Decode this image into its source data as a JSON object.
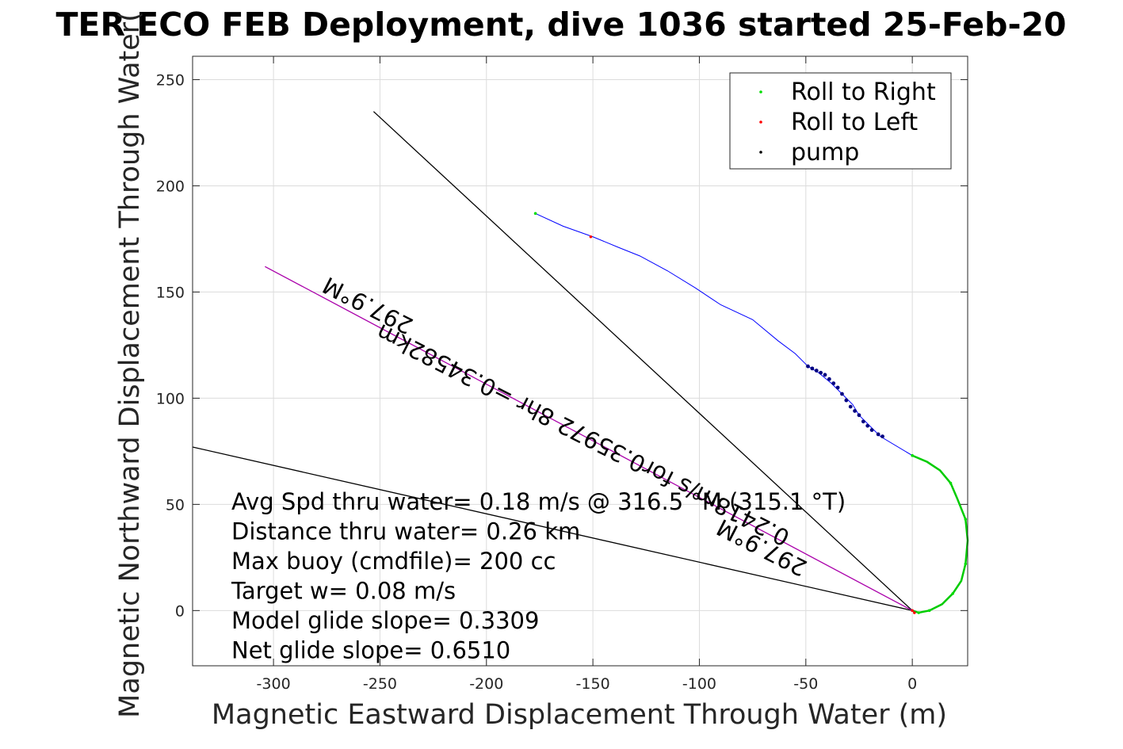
{
  "chart_data": {
    "type": "line",
    "title": "TER ECO FEB Deployment, dive 1036 started 25-Feb-20",
    "xlabel": "Magnetic Eastward Displacement Through Water (m)",
    "ylabel": "Magnetic Northward Displacement Through Water(",
    "xlim": [
      -338,
      26
    ],
    "ylim": [
      -26,
      261
    ],
    "xticks": [
      -300,
      -250,
      -200,
      -150,
      -100,
      -50,
      0
    ],
    "yticks": [
      0,
      50,
      100,
      150,
      200,
      250
    ],
    "grid": true,
    "legend_position": "top-right",
    "colors": {
      "track": "#0000ff",
      "roll_right": "#00cc00",
      "roll_left": "#ff0000",
      "pump": "#000080",
      "heading": "#aa00aa",
      "lines": "#000000"
    },
    "legend": [
      {
        "label": "Roll to Right",
        "color": "#00dd00"
      },
      {
        "label": "Roll to Left",
        "color": "#ff0000"
      },
      {
        "label": "pump",
        "color": "#000000"
      }
    ],
    "track": {
      "x": [
        0,
        7,
        13,
        18,
        21,
        25,
        26,
        25,
        23,
        19,
        14,
        8,
        3,
        0,
        -15,
        -20,
        -25,
        -28,
        -33,
        -38,
        -44,
        -49,
        -55,
        -63,
        -75,
        -90,
        -102,
        -115,
        -128,
        -138,
        -150,
        -164,
        -177
      ],
      "y": [
        73,
        70,
        66,
        60,
        53,
        43,
        33,
        22,
        14,
        8,
        3,
        0,
        -1,
        0,
        82,
        87,
        92,
        97,
        102,
        107,
        112,
        115,
        121,
        127,
        137,
        144,
        152,
        160,
        167,
        171,
        176,
        181,
        187
      ]
    },
    "roll_right_points": [
      [
        -177,
        187
      ],
      [
        0,
        73
      ],
      [
        18,
        60
      ],
      [
        25,
        43
      ],
      [
        25,
        22
      ],
      [
        19,
        8
      ],
      [
        8,
        0
      ],
      [
        3,
        -1
      ]
    ],
    "roll_left_points": [
      [
        -151,
        176
      ],
      [
        0,
        0
      ],
      [
        1,
        -1
      ]
    ],
    "pump_points": [
      [
        -49,
        115
      ],
      [
        -47,
        114
      ],
      [
        -45,
        113
      ],
      [
        -43,
        112
      ],
      [
        -41,
        111
      ],
      [
        -39,
        109
      ],
      [
        -37,
        107
      ],
      [
        -35,
        105
      ],
      [
        -33,
        102
      ],
      [
        -31,
        99
      ],
      [
        -29,
        96
      ],
      [
        -27,
        94
      ],
      [
        -25,
        92
      ],
      [
        -23,
        89
      ],
      [
        -21,
        87
      ],
      [
        -19,
        85
      ],
      [
        -16,
        83
      ],
      [
        -14,
        82
      ]
    ],
    "lines": [
      {
        "name": "dive heading",
        "from": [
          0,
          0
        ],
        "to": [
          -253,
          235
        ],
        "color": "#000000"
      },
      {
        "name": "wind",
        "from": [
          0,
          0
        ],
        "to": [
          -338,
          77
        ],
        "color": "#000000"
      },
      {
        "name": "current",
        "from": [
          0,
          0
        ],
        "to": [
          -304,
          162
        ],
        "color": "#aa00aa"
      }
    ],
    "annotations": [
      {
        "text": "297.9°M",
        "x": -254,
        "y": 147,
        "angle": 207
      },
      {
        "text": "0.2418m/s for0.35972 8hr =0.34582km",
        "x": -153,
        "y": 86,
        "angle": 207
      },
      {
        "text": "297.9°M",
        "x": -69,
        "y": 33,
        "angle": 207
      }
    ],
    "stats": [
      "Avg Spd thru water=  0.18 m/s @ 316.5 °M (315.1 °T)",
      "Distance thru water=  0.26 km",
      "Max buoy (cmdfile)= 200 cc",
      "Target w= 0.08 m/s",
      "Model glide slope= 0.3309",
      "Net glide slope= 0.6510"
    ]
  }
}
